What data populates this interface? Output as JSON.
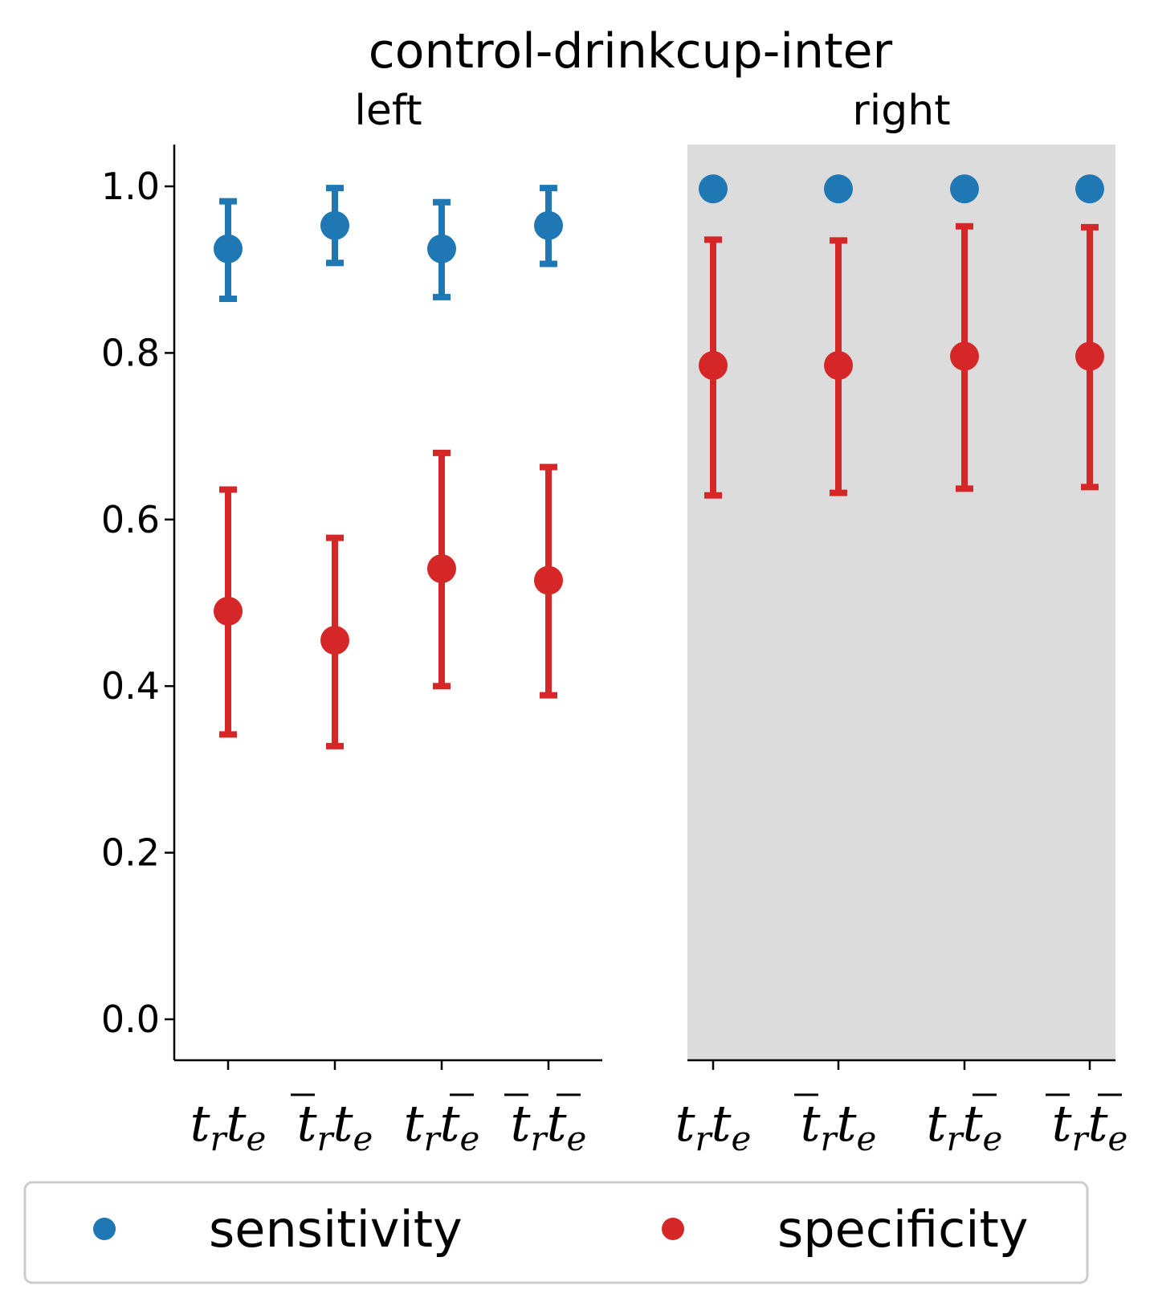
{
  "chart_data": {
    "type": "scatter",
    "title": "control-drinkcup-inter",
    "yticks": [
      "0.0",
      "0.2",
      "0.4",
      "0.6",
      "0.8",
      "1.0"
    ],
    "ylim": [
      -0.05,
      1.05
    ],
    "grid": false,
    "legend_placement": "bottom",
    "panels": [
      {
        "name": "left",
        "background": "#ffffff",
        "categories": [
          {
            "base": "t",
            "sub_r": "r",
            "sub_e": "e",
            "bar_r": false,
            "bar_e": false
          },
          {
            "base": "t",
            "sub_r": "r",
            "sub_e": "e",
            "bar_r": true,
            "bar_e": false
          },
          {
            "base": "t",
            "sub_r": "r",
            "sub_e": "e",
            "bar_r": false,
            "bar_e": true
          },
          {
            "base": "t",
            "sub_r": "r",
            "sub_e": "e",
            "bar_r": true,
            "bar_e": true
          }
        ],
        "series": [
          {
            "name": "sensitivity",
            "values": [
              0.925,
              0.953,
              0.925,
              0.953
            ],
            "lower": [
              0.865,
              0.908,
              0.867,
              0.907
            ],
            "upper": [
              0.982,
              0.998,
              0.981,
              0.998
            ]
          },
          {
            "name": "specificity",
            "values": [
              0.49,
              0.455,
              0.541,
              0.527
            ],
            "lower": [
              0.342,
              0.328,
              0.4,
              0.389
            ],
            "upper": [
              0.636,
              0.578,
              0.68,
              0.663
            ]
          }
        ]
      },
      {
        "name": "right",
        "background": "#dcdcdc",
        "categories": [
          {
            "base": "t",
            "sub_r": "r",
            "sub_e": "e",
            "bar_r": false,
            "bar_e": false
          },
          {
            "base": "t",
            "sub_r": "r",
            "sub_e": "e",
            "bar_r": true,
            "bar_e": false
          },
          {
            "base": "t",
            "sub_r": "r",
            "sub_e": "e",
            "bar_r": false,
            "bar_e": true
          },
          {
            "base": "t",
            "sub_r": "r",
            "sub_e": "e",
            "bar_r": true,
            "bar_e": true
          }
        ],
        "series": [
          {
            "name": "sensitivity",
            "values": [
              0.997,
              0.997,
              0.997,
              0.997
            ],
            "lower": [
              0.997,
              0.997,
              0.997,
              0.997
            ],
            "upper": [
              0.997,
              0.997,
              0.997,
              0.997
            ]
          },
          {
            "name": "specificity",
            "values": [
              0.785,
              0.785,
              0.796,
              0.796
            ],
            "lower": [
              0.629,
              0.632,
              0.637,
              0.639
            ],
            "upper": [
              0.936,
              0.935,
              0.952,
              0.951
            ]
          }
        ]
      }
    ],
    "legend": [
      {
        "name": "sensitivity",
        "color": "#1f77b4"
      },
      {
        "name": "specificity",
        "color": "#d62728"
      }
    ],
    "colors": {
      "sensitivity": "#1f77b4",
      "specificity": "#d62728"
    }
  }
}
